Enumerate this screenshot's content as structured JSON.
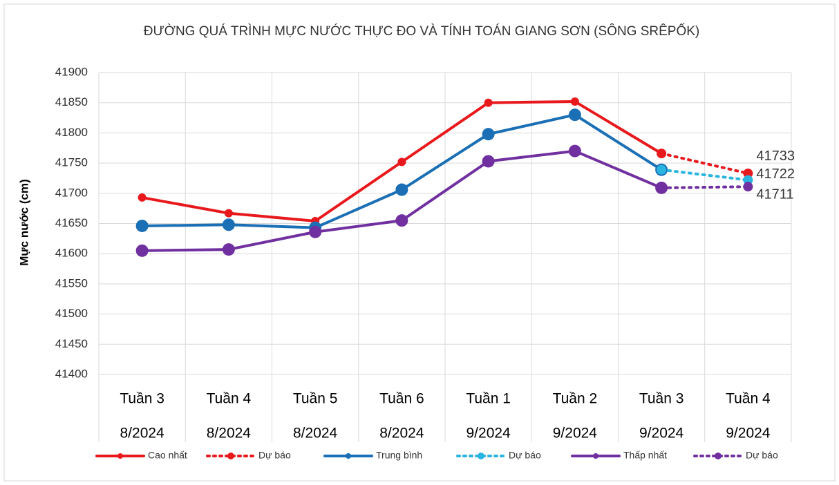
{
  "chart_data": {
    "type": "line",
    "title": "ĐƯỜNG QUÁ TRÌNH MỰC NƯỚC THỰC ĐO VÀ TÍNH TOÁN GIANG SƠN (SÔNG SRÊPỐK)",
    "y_label": "Mực nước (cm)",
    "categories": [
      [
        "Tuần 3",
        "8/2024"
      ],
      [
        "Tuần 4",
        "8/2024"
      ],
      [
        "Tuần 5",
        "8/2024"
      ],
      [
        "Tuần 6",
        "8/2024"
      ],
      [
        "Tuần 1",
        "9/2024"
      ],
      [
        "Tuần 2",
        "9/2024"
      ],
      [
        "Tuần 3",
        "9/2024"
      ],
      [
        "Tuần 4",
        "9/2024"
      ]
    ],
    "series": [
      {
        "name": "Cao nhất",
        "color": "#e8191d",
        "dashed": false,
        "marker": 6,
        "values": [
          41693,
          41667,
          41654,
          41752,
          41850,
          41852,
          41766,
          null
        ]
      },
      {
        "name": "Dự báo",
        "color": "#e8191d",
        "dashed": true,
        "marker": 7,
        "data_labels": "last",
        "values": [
          null,
          null,
          null,
          null,
          null,
          null,
          41766,
          41733
        ]
      },
      {
        "name": "Trung bình",
        "color": "#1a6fb5",
        "dashed": false,
        "marker": 9,
        "values": [
          41646,
          41648,
          41643,
          41706,
          41798,
          41830,
          41739,
          null
        ]
      },
      {
        "name": "Dự báo",
        "color": "#2ab4e0",
        "dashed": true,
        "marker": 7,
        "data_labels": "last",
        "values": [
          null,
          null,
          null,
          null,
          null,
          null,
          41739,
          41722
        ]
      },
      {
        "name": "Thấp nhất",
        "color": "#7030a0",
        "dashed": false,
        "marker": 9,
        "values": [
          41605,
          41607,
          41636,
          41655,
          41753,
          41770,
          41709,
          null
        ]
      },
      {
        "name": "Dự báo",
        "color": "#7030a0",
        "dashed": true,
        "marker": 7,
        "data_labels": "last",
        "values": [
          null,
          null,
          null,
          null,
          null,
          null,
          41709,
          41711
        ]
      }
    ],
    "ylim": [
      41400,
      41900
    ],
    "yticks": [
      41400,
      41450,
      41500,
      41550,
      41600,
      41650,
      41700,
      41750,
      41800,
      41850,
      41900
    ],
    "grid": true,
    "legend": "bottom"
  }
}
